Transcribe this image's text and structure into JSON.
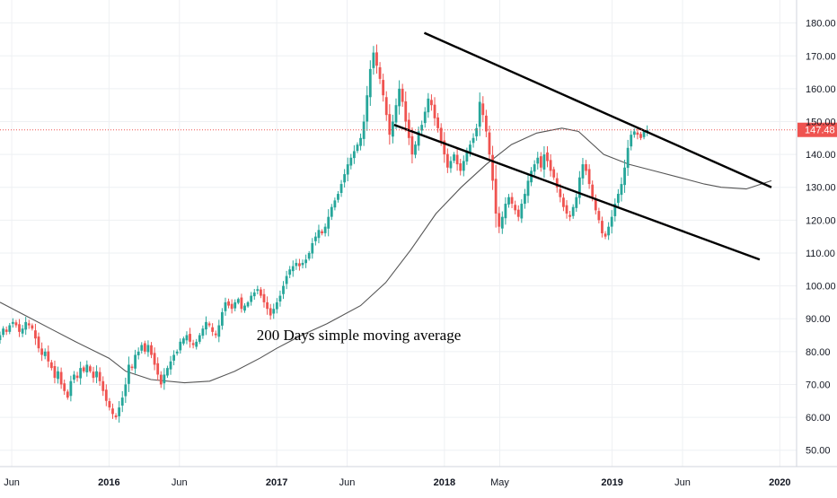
{
  "chart_data": {
    "type": "candlestick",
    "y_axis": {
      "range": [
        45,
        187
      ],
      "ticks": [
        "50.00",
        "60.00",
        "70.00",
        "80.00",
        "90.00",
        "100.00",
        "110.00",
        "120.00",
        "130.00",
        "140.00",
        "150.00",
        "160.00",
        "170.00",
        "180.00"
      ],
      "tick_values": [
        50,
        60,
        70,
        80,
        90,
        100,
        110,
        120,
        130,
        140,
        150,
        160,
        170,
        180
      ]
    },
    "x_axis": {
      "range": [
        2015.35,
        2020.1
      ],
      "ticks": [
        {
          "label": "Jun",
          "x": 2015.42,
          "bold": false
        },
        {
          "label": "2016",
          "x": 2016.0,
          "bold": true
        },
        {
          "label": "Jun",
          "x": 2016.42,
          "bold": false
        },
        {
          "label": "2017",
          "x": 2017.0,
          "bold": true
        },
        {
          "label": "Jun",
          "x": 2017.42,
          "bold": false
        },
        {
          "label": "2018",
          "x": 2018.0,
          "bold": true
        },
        {
          "label": "May",
          "x": 2018.33,
          "bold": false
        },
        {
          "label": "2019",
          "x": 2019.0,
          "bold": true
        },
        {
          "label": "Jun",
          "x": 2019.42,
          "bold": false
        },
        {
          "label": "2020",
          "x": 2020.0,
          "bold": true
        }
      ]
    },
    "grid": true,
    "last_price": {
      "value": 147.48,
      "label": "147.48"
    },
    "colors": {
      "up": "#26a69a",
      "down": "#ef5350",
      "ma": "#555555",
      "grid": "#eef0f3",
      "price_line": "#ef5350"
    },
    "annotation": {
      "text": "200 Days simple moving average",
      "x": 2016.88,
      "y": 83.5
    },
    "trendlines": [
      {
        "name": "upper-channel-line",
        "from": [
          2017.88,
          177
        ],
        "to": [
          2019.95,
          130
        ]
      },
      {
        "name": "lower-channel-line",
        "from": [
          2017.7,
          149
        ],
        "to": [
          2019.88,
          108
        ]
      }
    ],
    "series": [
      {
        "type": "ohlc",
        "step": 0.0192,
        "start": 2015.35,
        "closes": [
          85,
          87,
          86,
          88,
          89,
          88,
          86,
          87,
          89,
          88,
          87,
          84,
          81,
          79,
          80,
          77,
          75,
          72,
          74,
          70,
          68,
          66,
          71,
          73,
          72,
          75,
          74,
          76,
          74,
          72,
          74,
          71,
          68,
          65,
          63,
          61,
          60,
          63,
          66,
          70,
          76,
          75,
          79,
          80,
          82,
          80,
          82,
          79,
          76,
          73,
          70,
          73,
          75,
          77,
          79,
          80,
          83,
          84,
          85,
          83,
          82,
          83,
          85,
          87,
          89,
          88,
          86,
          85,
          88,
          92,
          95,
          94,
          93,
          95,
          96,
          93,
          94,
          95,
          97,
          98,
          99,
          97,
          95,
          93,
          91,
          93,
          95,
          97,
          100,
          103,
          105,
          106,
          107,
          106,
          107,
          108,
          110,
          113,
          115,
          117,
          116,
          118,
          121,
          124,
          126,
          128,
          131,
          134,
          137,
          139,
          141,
          143,
          145,
          150,
          158,
          166,
          171,
          167,
          163,
          158,
          152,
          146,
          150,
          155,
          160,
          156,
          150,
          145,
          140,
          143,
          147,
          149,
          153,
          157,
          155,
          151,
          148,
          144,
          140,
          136,
          138,
          140,
          137,
          135,
          138,
          141,
          143,
          145,
          148,
          156,
          152,
          147,
          140,
          132,
          122,
          118,
          121,
          125,
          127,
          125,
          123,
          121,
          125,
          128,
          132,
          135,
          137,
          139,
          136,
          140,
          138,
          135,
          133,
          130,
          127,
          124,
          122,
          121,
          124,
          127,
          133,
          137,
          135,
          131,
          127,
          123,
          120,
          116,
          115,
          118,
          121,
          125,
          128,
          131,
          136,
          142,
          146,
          147,
          146,
          145,
          147,
          147.48
        ]
      },
      {
        "type": "ma",
        "name": "200 Days simple moving average",
        "points": [
          [
            2015.35,
            95
          ],
          [
            2015.5,
            91
          ],
          [
            2015.65,
            87
          ],
          [
            2015.8,
            83
          ],
          [
            2016.0,
            78
          ],
          [
            2016.1,
            74
          ],
          [
            2016.25,
            71.5
          ],
          [
            2016.45,
            70.5
          ],
          [
            2016.6,
            71
          ],
          [
            2016.75,
            74
          ],
          [
            2016.9,
            78
          ],
          [
            2017.0,
            81
          ],
          [
            2017.15,
            85
          ],
          [
            2017.3,
            88.5
          ],
          [
            2017.5,
            94
          ],
          [
            2017.65,
            101
          ],
          [
            2017.8,
            111
          ],
          [
            2017.95,
            122
          ],
          [
            2018.1,
            130
          ],
          [
            2018.25,
            137
          ],
          [
            2018.4,
            143
          ],
          [
            2018.55,
            146.5
          ],
          [
            2018.7,
            148
          ],
          [
            2018.8,
            147
          ],
          [
            2018.95,
            140
          ],
          [
            2019.1,
            137
          ],
          [
            2019.25,
            135
          ],
          [
            2019.4,
            133
          ],
          [
            2019.55,
            131
          ],
          [
            2019.65,
            130
          ],
          [
            2019.8,
            129.5
          ],
          [
            2019.95,
            132
          ]
        ]
      }
    ]
  }
}
